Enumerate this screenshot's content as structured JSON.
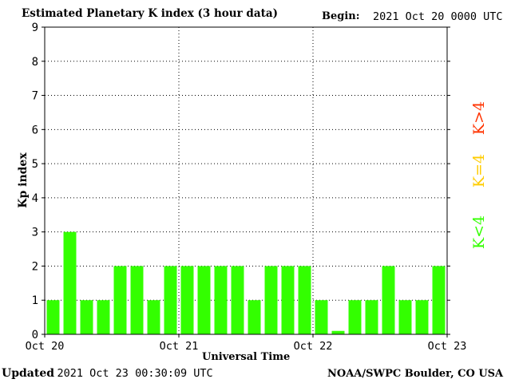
{
  "header": {
    "title": "Estimated Planetary K index (3 hour data)",
    "begin_label": "Begin:",
    "begin_value": "2021 Oct 20 0000 UTC"
  },
  "footer": {
    "updated_label": "Updated",
    "updated_value": "2021 Oct 23 00:30:09 UTC",
    "source": "NOAA/SWPC Boulder, CO USA"
  },
  "legend": {
    "high": {
      "label": "K>4",
      "color": "#ff3300"
    },
    "mid": {
      "label": "K=4",
      "color": "#ffcc00"
    },
    "low": {
      "label": "K<4",
      "color": "#33ff00"
    }
  },
  "chart_data": {
    "type": "bar",
    "xlabel": "Universal Time",
    "ylabel": "Kp index",
    "ylim": [
      0,
      9
    ],
    "yticks": [
      "0",
      "1",
      "2",
      "3",
      "4",
      "5",
      "6",
      "7",
      "8",
      "9"
    ],
    "xticks": [
      "Oct 20",
      "Oct 21",
      "Oct 22",
      "Oct 23"
    ],
    "grid": "dotted",
    "bar_color": "#33ff00",
    "values": [
      1,
      3,
      1,
      1,
      2,
      2,
      1,
      2,
      2,
      2,
      2,
      2,
      1,
      2,
      2,
      2,
      1,
      0.1,
      1,
      1,
      2,
      1,
      1,
      2
    ]
  }
}
